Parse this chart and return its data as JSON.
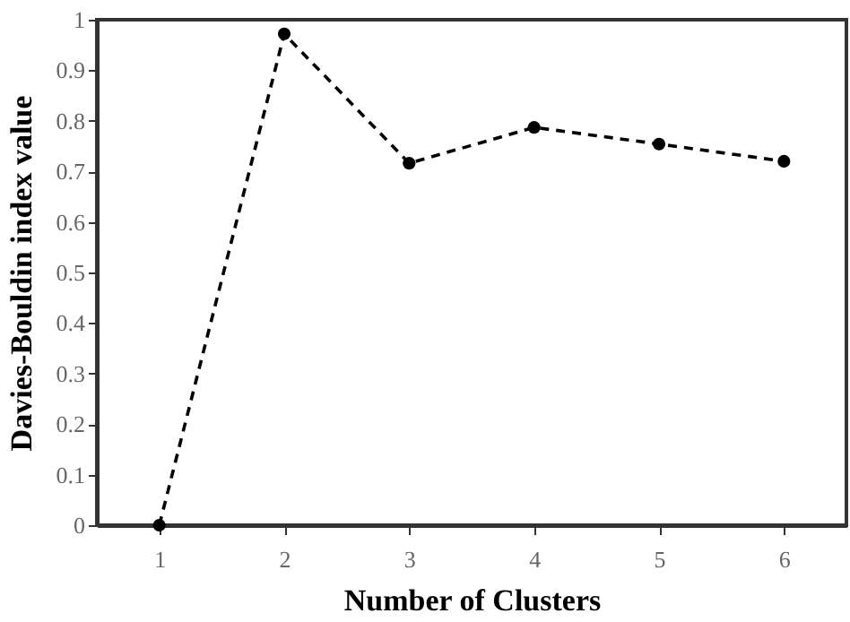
{
  "chart_data": {
    "type": "line",
    "xlabel": "Number of Clusters",
    "ylabel": "Davies-Bouldin index value",
    "x": [
      1,
      2,
      3,
      4,
      5,
      6
    ],
    "series": [
      {
        "color": "#000000",
        "values": [
          0,
          0.972,
          0.716,
          0.787,
          0.754,
          0.72
        ]
      }
    ],
    "xlim": [
      0.5,
      6.5
    ],
    "xticks": [
      1,
      2,
      3,
      4,
      5,
      6
    ],
    "ylim": [
      0,
      1
    ],
    "yticks": [
      0,
      0.1,
      0.2,
      0.3,
      0.4,
      0.5,
      0.6,
      0.7,
      0.8,
      0.9,
      1
    ],
    "marker": "circle",
    "line_style": "dashed",
    "grid": false
  }
}
